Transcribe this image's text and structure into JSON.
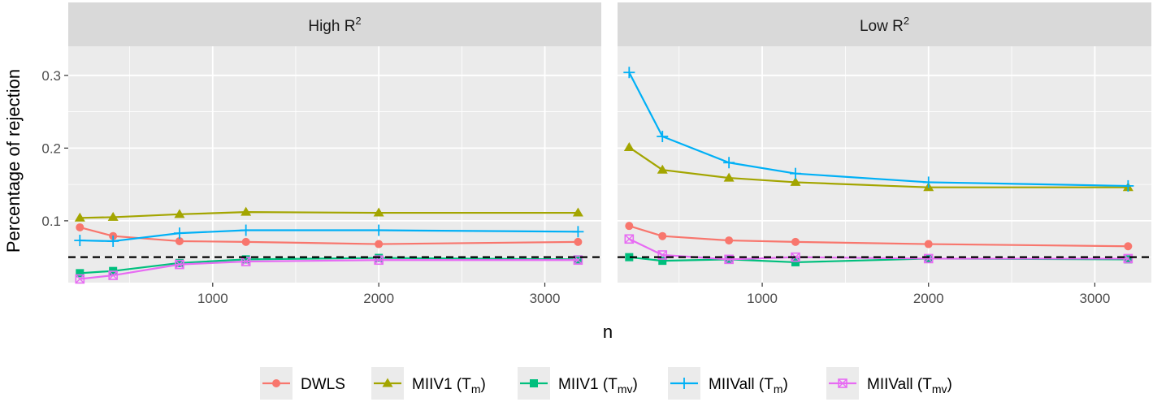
{
  "chart_data": {
    "type": "line",
    "xlabel": "n",
    "ylabel": "Percentage of rejection",
    "xlim": [
      130,
      3340
    ],
    "ylim": [
      0.015,
      0.34
    ],
    "x_ticks": [
      {
        "value": 1000,
        "label": "1000"
      },
      {
        "value": 2000,
        "label": "2000"
      },
      {
        "value": 3000,
        "label": "3000"
      }
    ],
    "x_minor": [
      500,
      1500,
      2500
    ],
    "y_ticks": [
      {
        "value": 0.1,
        "label": "0.1"
      },
      {
        "value": 0.2,
        "label": "0.2"
      },
      {
        "value": 0.3,
        "label": "0.3"
      }
    ],
    "y_minor": [
      0.05,
      0.15,
      0.25
    ],
    "reference_line": {
      "y": 0.05,
      "style": "dashed",
      "color": "#000000"
    },
    "grid": true,
    "legend": {
      "position": "bottom"
    },
    "panels": [
      {
        "title_base": "High R",
        "title_sup": "2",
        "series": [
          {
            "name": "DWLS",
            "color": "#F8766D",
            "marker": "circle",
            "x": [
              200,
              400,
              800,
              1200,
              2000,
              3200
            ],
            "y": [
              0.091,
              0.079,
              0.072,
              0.071,
              0.068,
              0.071
            ]
          },
          {
            "name": "MIIV1 (Tm)",
            "color": "#A3A500",
            "marker": "triangle",
            "x": [
              200,
              400,
              800,
              1200,
              2000,
              3200
            ],
            "y": [
              0.104,
              0.105,
              0.109,
              0.112,
              0.111,
              0.111
            ]
          },
          {
            "name": "MIIV1 (Tmv)",
            "color": "#00BF7D",
            "marker": "square",
            "x": [
              200,
              400,
              800,
              1200,
              2000,
              3200
            ],
            "y": [
              0.028,
              0.031,
              0.042,
              0.047,
              0.049,
              0.047
            ]
          },
          {
            "name": "MIIVall (Tm)",
            "color": "#00B0F6",
            "marker": "plus",
            "x": [
              200,
              400,
              800,
              1200,
              2000,
              3200
            ],
            "y": [
              0.073,
              0.072,
              0.083,
              0.087,
              0.087,
              0.085
            ]
          },
          {
            "name": "MIIVall (Tmv)",
            "color": "#E76BF3",
            "marker": "boxx",
            "x": [
              200,
              400,
              800,
              1200,
              2000,
              3200
            ],
            "y": [
              0.02,
              0.025,
              0.04,
              0.044,
              0.046,
              0.046
            ]
          }
        ]
      },
      {
        "title_base": "Low R",
        "title_sup": "2",
        "series": [
          {
            "name": "DWLS",
            "color": "#F8766D",
            "marker": "circle",
            "x": [
              200,
              400,
              800,
              1200,
              2000,
              3200
            ],
            "y": [
              0.093,
              0.079,
              0.073,
              0.071,
              0.068,
              0.065
            ]
          },
          {
            "name": "MIIV1 (Tm)",
            "color": "#A3A500",
            "marker": "triangle",
            "x": [
              200,
              400,
              800,
              1200,
              2000,
              3200
            ],
            "y": [
              0.201,
              0.17,
              0.159,
              0.153,
              0.146,
              0.146
            ]
          },
          {
            "name": "MIIV1 (Tmv)",
            "color": "#00BF7D",
            "marker": "square",
            "x": [
              200,
              400,
              800,
              1200,
              2000,
              3200
            ],
            "y": [
              0.05,
              0.045,
              0.047,
              0.043,
              0.048,
              0.047
            ]
          },
          {
            "name": "MIIVall (Tm)",
            "color": "#00B0F6",
            "marker": "plus",
            "x": [
              200,
              400,
              800,
              1200,
              2000,
              3200
            ],
            "y": [
              0.304,
              0.216,
              0.18,
              0.165,
              0.153,
              0.148
            ]
          },
          {
            "name": "MIIVall (Tmv)",
            "color": "#E76BF3",
            "marker": "boxx",
            "x": [
              200,
              400,
              800,
              1200,
              2000,
              3200
            ],
            "y": [
              0.075,
              0.053,
              0.047,
              0.05,
              0.048,
              0.048
            ]
          }
        ]
      }
    ],
    "legend_entries": [
      {
        "base": "DWLS",
        "sub": "",
        "color": "#F8766D",
        "marker": "circle"
      },
      {
        "base": "MIIV1 (T",
        "sub": "m",
        "tail": ")",
        "color": "#A3A500",
        "marker": "triangle"
      },
      {
        "base": "MIIV1 (T",
        "sub": "mv",
        "tail": ")",
        "color": "#00BF7D",
        "marker": "square"
      },
      {
        "base": "MIIVall (T",
        "sub": "m",
        "tail": ")",
        "color": "#00B0F6",
        "marker": "plus"
      },
      {
        "base": "MIIVall (T",
        "sub": "mv",
        "tail": ")",
        "color": "#E76BF3",
        "marker": "boxx"
      }
    ]
  }
}
